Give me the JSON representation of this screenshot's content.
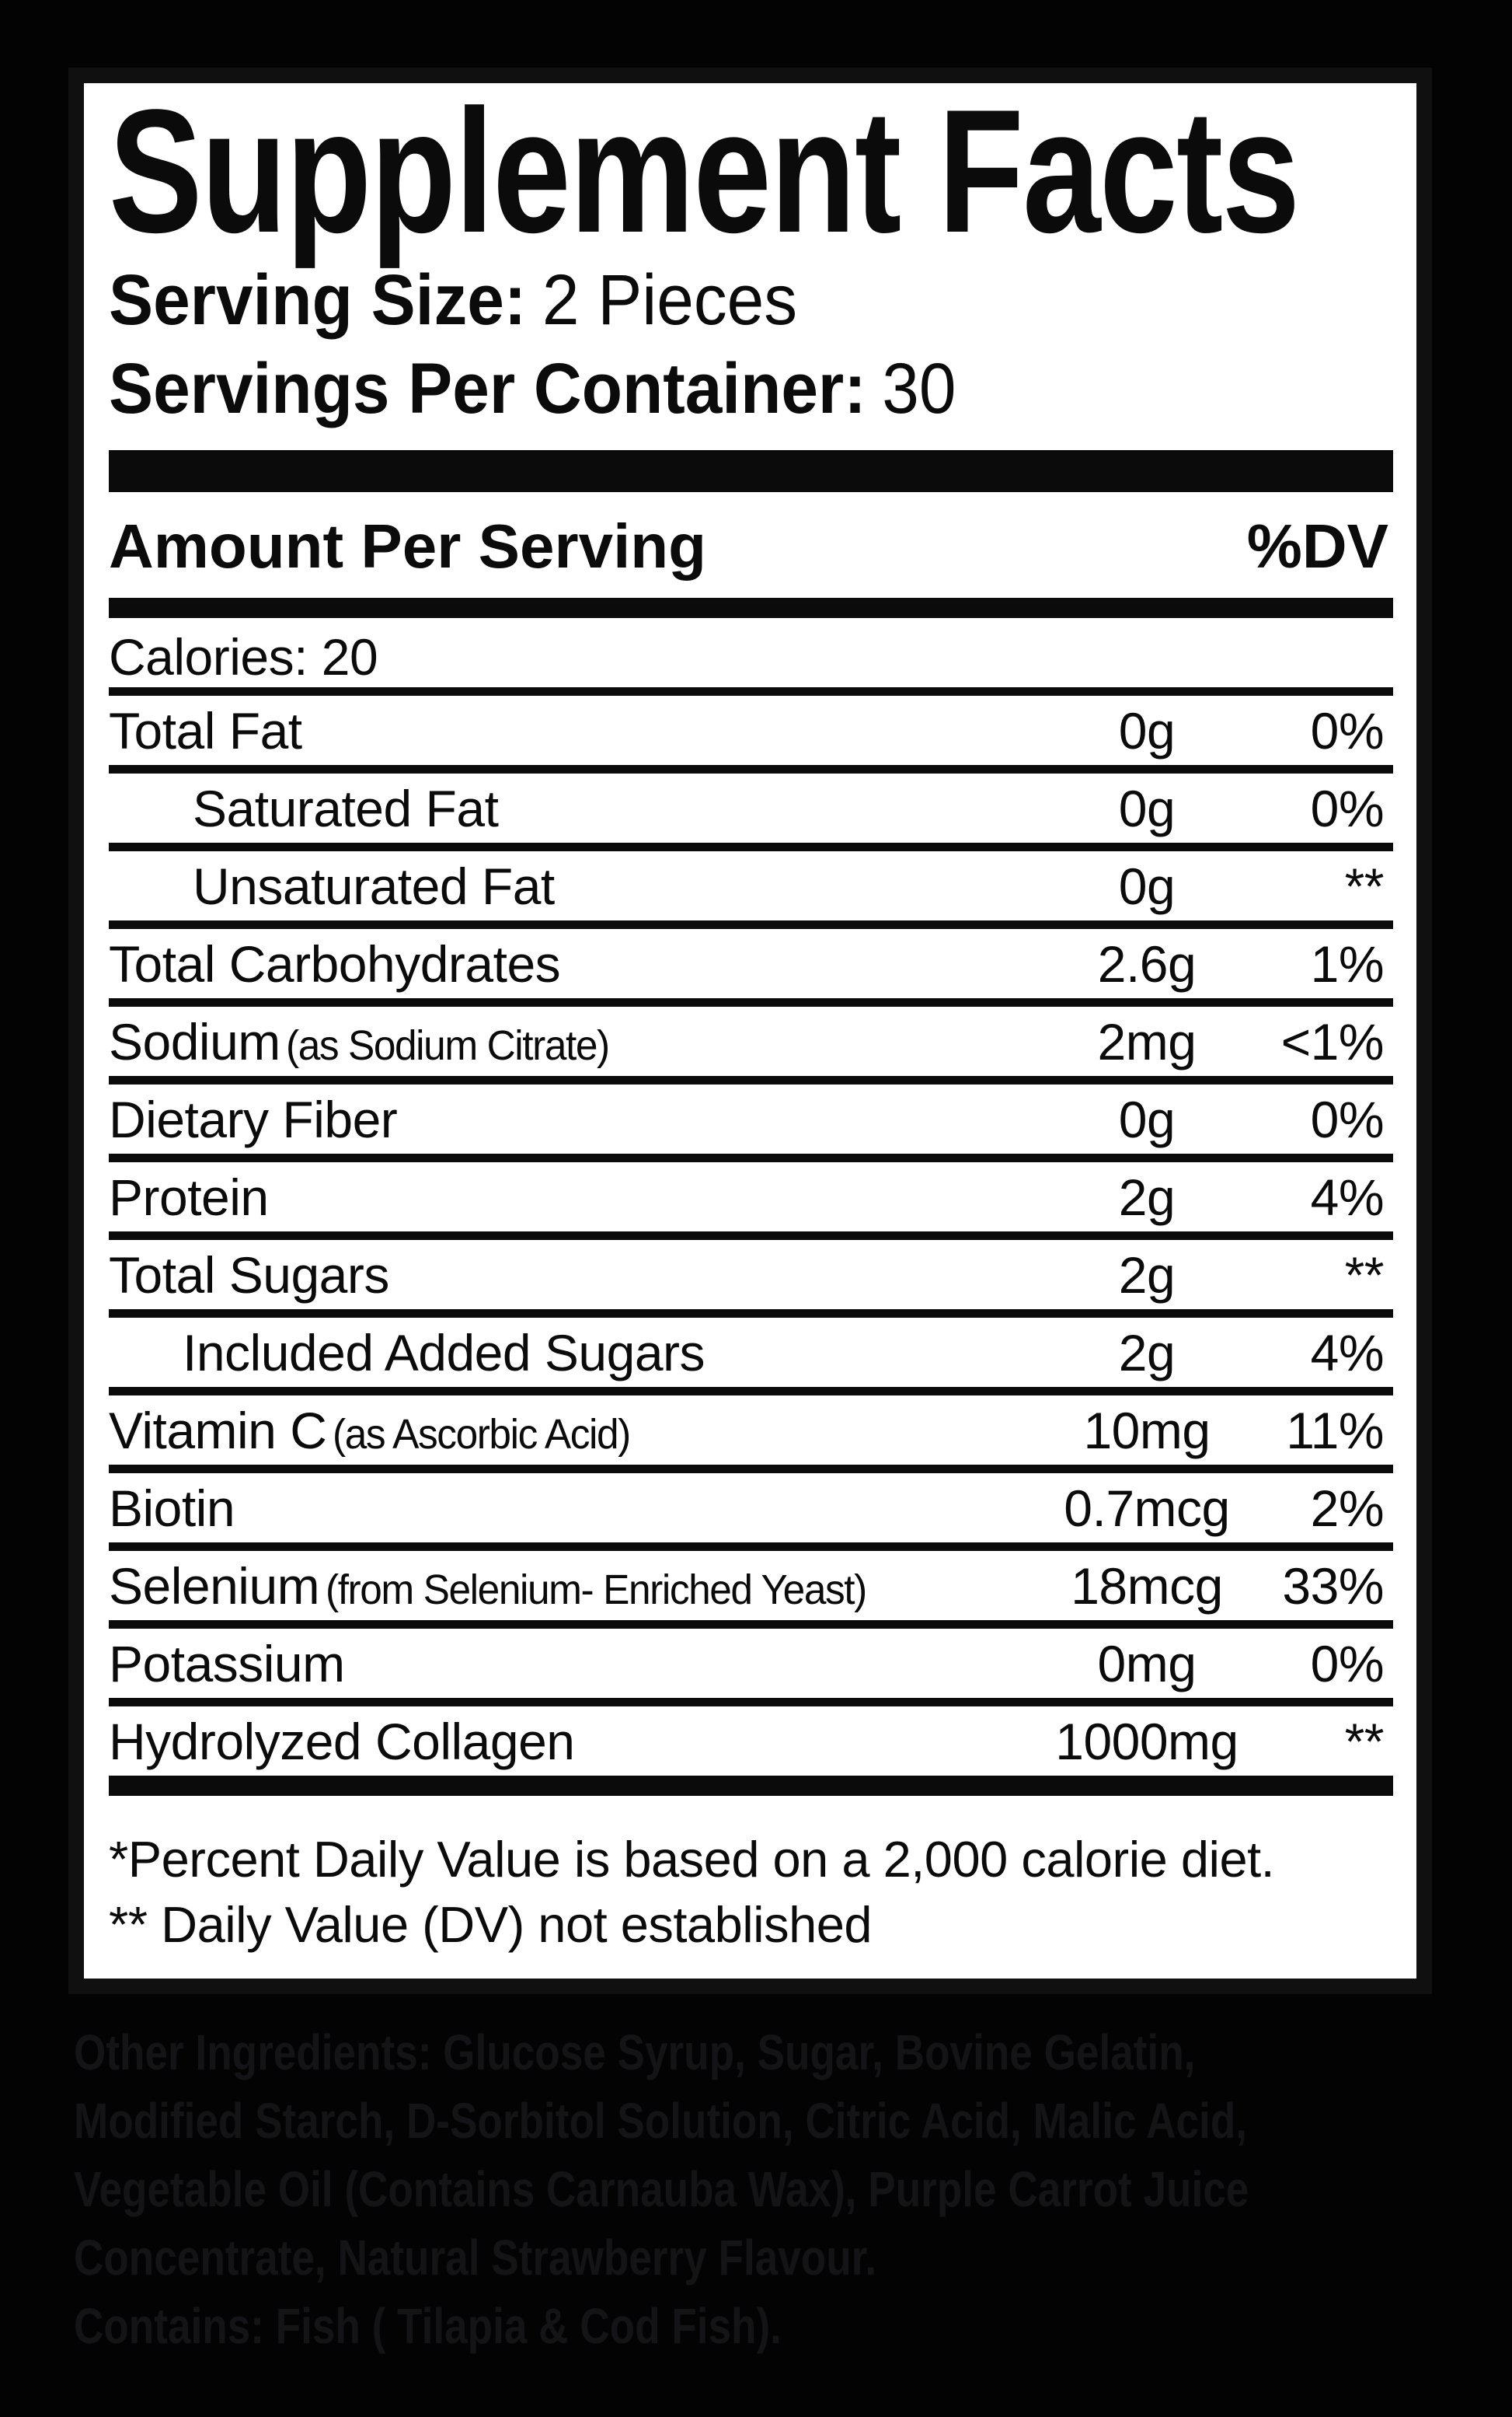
{
  "panel": {
    "title": "Supplement Facts",
    "serving_size_label": "Serving Size:",
    "serving_size_value": "2 Pieces",
    "servings_per_container_label": "Servings Per Container:",
    "servings_per_container_value": "30"
  },
  "table": {
    "amount_header": "Amount Per Serving",
    "dv_header": "%DV",
    "calories_label": "Calories: 20",
    "rows": [
      {
        "label": "Total Fat",
        "amount": "0g",
        "dv": "0%"
      },
      {
        "label": "Saturated Fat",
        "amount": "0g",
        "dv": "0%"
      },
      {
        "label": "Unsaturated Fat",
        "amount": "0g",
        "dv": "**"
      },
      {
        "label": "Total Carbohydrates",
        "amount": "2.6g",
        "dv": "1%"
      },
      {
        "label": "Sodium",
        "sub": "(as Sodium Citrate)",
        "amount": "2mg",
        "dv": "<1%"
      },
      {
        "label": "Dietary Fiber",
        "amount": "0g",
        "dv": "0%"
      },
      {
        "label": "Protein",
        "amount": "2g",
        "dv": "4%"
      },
      {
        "label": "Total Sugars",
        "amount": "2g",
        "dv": "**"
      },
      {
        "label": "Included Added Sugars",
        "amount": "2g",
        "dv": "4%"
      },
      {
        "label": "Vitamin C",
        "sub": "(as Ascorbic Acid)",
        "amount": "10mg",
        "dv": "11%"
      },
      {
        "label": "Biotin",
        "amount": "0.7mcg",
        "dv": "2%"
      },
      {
        "label": "Selenium",
        "sub": "(from Selenium- Enriched Yeast)",
        "amount": "18mcg",
        "dv": "33%"
      },
      {
        "label": "Potassium",
        "amount": "0mg",
        "dv": "0%"
      },
      {
        "label": "Hydrolyzed Collagen",
        "amount": "1000mg",
        "dv": "**"
      }
    ]
  },
  "footnotes": [
    "*Percent Daily Value is based on a 2,000 calorie diet.",
    "** Daily Value (DV) not established"
  ],
  "ingredients": {
    "lines": [
      {
        "bold": "Other Ingredients:",
        "text": " Glucose Syrup, Sugar, Bovine Gelatin,"
      },
      {
        "bold": "",
        "text": "Modified Starch, D-Sorbitol Solution, Citric Acid, Malic Acid,"
      },
      {
        "bold": "",
        "text": "Vegetable Oil (Contains Carnauba Wax), Purple Carrot Juice"
      },
      {
        "bold": "",
        "text": "Concentrate, Natural Strawberry Flavour."
      },
      {
        "bold": "Contains:",
        "text": " Fish ( Tilapia & Cod Fish)."
      }
    ]
  },
  "colors": {
    "ink": "#0b0b0c",
    "panel_bg": "#ffffff",
    "page_bg": "#030304",
    "faint_ingredients_text": "#141417"
  }
}
